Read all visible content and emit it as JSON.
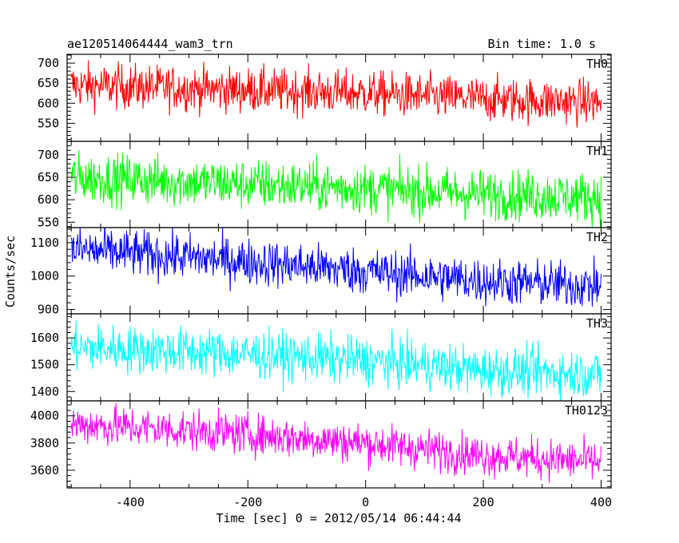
{
  "chart_data": {
    "type": "line",
    "title": "ae120514064444_wam3_trn",
    "subtitle": "Bin time: 1.0 s",
    "xlabel": "Time [sec] 0 = 2012/05/14 06:44:44",
    "ylabel": "Counts/sec",
    "xlim": [
      -507,
      417
    ],
    "xticks": [
      -400,
      -200,
      0,
      200,
      400
    ],
    "grid": false,
    "panels": [
      {
        "name": "TH0",
        "color": "#ff0000",
        "ylim": [
          505,
          722
        ],
        "yticks": [
          550,
          600,
          650,
          700
        ],
        "trend": [
          [
            -500,
            645
          ],
          [
            -250,
            635
          ],
          [
            0,
            625
          ],
          [
            200,
            610
          ],
          [
            400,
            602
          ]
        ],
        "noise": 28
      },
      {
        "name": "TH1",
        "color": "#00ff00",
        "ylim": [
          538,
          730
        ],
        "yticks": [
          550,
          600,
          650,
          700
        ],
        "trend": [
          [
            -500,
            650
          ],
          [
            -250,
            637
          ],
          [
            0,
            625
          ],
          [
            200,
            612
          ],
          [
            400,
            605
          ]
        ],
        "noise": 28
      },
      {
        "name": "TH2",
        "color": "#0000ff",
        "ylim": [
          887,
          1145
        ],
        "yticks": [
          900,
          1000,
          1100
        ],
        "trend": [
          [
            -500,
            1080
          ],
          [
            -250,
            1050
          ],
          [
            0,
            1015
          ],
          [
            200,
            985
          ],
          [
            400,
            970
          ]
        ],
        "noise": 35
      },
      {
        "name": "TH3",
        "color": "#00ffff",
        "ylim": [
          1365,
          1690
        ],
        "yticks": [
          1400,
          1500,
          1600
        ],
        "trend": [
          [
            -500,
            1565
          ],
          [
            -250,
            1545
          ],
          [
            0,
            1515
          ],
          [
            200,
            1480
          ],
          [
            400,
            1465
          ]
        ],
        "noise": 45
      },
      {
        "name": "TH0123",
        "color": "#ff00ff",
        "ylim": [
          3470,
          4110
        ],
        "yticks": [
          3600,
          3800,
          4000
        ],
        "trend": [
          [
            -500,
            3940
          ],
          [
            -250,
            3880
          ],
          [
            0,
            3800
          ],
          [
            200,
            3710
          ],
          [
            400,
            3660
          ]
        ],
        "noise": 75
      }
    ]
  }
}
